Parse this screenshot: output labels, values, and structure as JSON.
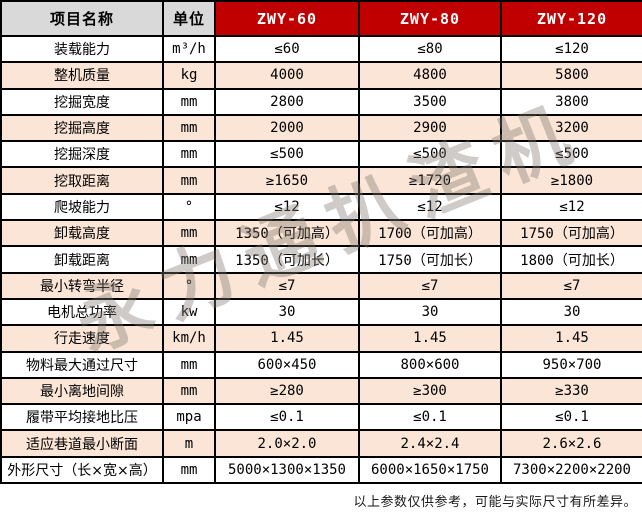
{
  "table": {
    "headers": [
      "项目名称",
      "单位",
      "ZWY-60",
      "ZWY-80",
      "ZWY-120"
    ],
    "rows": [
      {
        "name": "装载能力",
        "unit": "m³/h",
        "values": [
          "≤60",
          "≤80",
          "≤120"
        ]
      },
      {
        "name": "整机质量",
        "unit": "kg",
        "values": [
          "4000",
          "4800",
          "5800"
        ]
      },
      {
        "name": "挖掘宽度",
        "unit": "mm",
        "values": [
          "2800",
          "3500",
          "3800"
        ]
      },
      {
        "name": "挖掘高度",
        "unit": "mm",
        "values": [
          "2000",
          "2900",
          "3200"
        ]
      },
      {
        "name": "挖掘深度",
        "unit": "mm",
        "values": [
          "≤500",
          "≤500",
          "≤500"
        ]
      },
      {
        "name": "挖取距离",
        "unit": "mm",
        "values": [
          "≥1650",
          "≥1720",
          "≥1800"
        ]
      },
      {
        "name": "爬坡能力",
        "unit": "°",
        "values": [
          "≤12",
          "≤12",
          "≤12"
        ]
      },
      {
        "name": "卸载高度",
        "unit": "mm",
        "values": [
          "1350（可加高）",
          "1700（可加高）",
          "1750（可加高）"
        ]
      },
      {
        "name": "卸载距离",
        "unit": "mm",
        "values": [
          "1350（可加长）",
          "1750（可加长）",
          "1800（可加长）"
        ]
      },
      {
        "name": "最小转弯半径",
        "unit": "°",
        "values": [
          "≤7",
          "≤7",
          "≤7"
        ]
      },
      {
        "name": "电机总功率",
        "unit": "kw",
        "values": [
          "30",
          "30",
          "30"
        ]
      },
      {
        "name": "行走速度",
        "unit": "km/h",
        "values": [
          "1.45",
          "1.45",
          "1.45"
        ]
      },
      {
        "name": "物料最大通过尺寸",
        "unit": "mm",
        "values": [
          "600×450",
          "800×600",
          "950×700"
        ]
      },
      {
        "name": "最小离地间隙",
        "unit": "mm",
        "values": [
          "≥280",
          "≥300",
          "≥330"
        ]
      },
      {
        "name": "履带平均接地比压",
        "unit": "mpa",
        "values": [
          "≤0.1",
          "≤0.1",
          "≤0.1"
        ]
      },
      {
        "name": "适应巷道最小断面",
        "unit": "m",
        "values": [
          "2.0×2.0",
          "2.4×2.4",
          "2.6×2.6"
        ]
      },
      {
        "name": "外形尺寸（长×宽×高）",
        "unit": "mm",
        "values": [
          "5000×1300×1350",
          "6000×1650×1750",
          "7300×2200×2200"
        ]
      }
    ]
  },
  "watermark": {
    "text": "永力通扒渣机"
  },
  "footnote": "以上参数仅供参考，可能与实际尺寸有所差异。",
  "colors": {
    "header_red": "#c00000",
    "header_gray": "#d9d9d9",
    "row_alt_peach": "#fbe5d6",
    "border": "#000000",
    "header_text": "#ffffff"
  },
  "chart_data": {
    "type": "table",
    "title": "ZWY 系列参数表",
    "columns": [
      "项目名称",
      "单位",
      "ZWY-60",
      "ZWY-80",
      "ZWY-120"
    ],
    "rows": [
      [
        "装载能力",
        "m³/h",
        "≤60",
        "≤80",
        "≤120"
      ],
      [
        "整机质量",
        "kg",
        "4000",
        "4800",
        "5800"
      ],
      [
        "挖掘宽度",
        "mm",
        "2800",
        "3500",
        "3800"
      ],
      [
        "挖掘高度",
        "mm",
        "2000",
        "2900",
        "3200"
      ],
      [
        "挖掘深度",
        "mm",
        "≤500",
        "≤500",
        "≤500"
      ],
      [
        "挖取距离",
        "mm",
        "≥1650",
        "≥1720",
        "≥1800"
      ],
      [
        "爬坡能力",
        "°",
        "≤12",
        "≤12",
        "≤12"
      ],
      [
        "卸载高度",
        "mm",
        "1350（可加高）",
        "1700（可加高）",
        "1750（可加高）"
      ],
      [
        "卸载距离",
        "mm",
        "1350（可加长）",
        "1750（可加长）",
        "1800（可加长）"
      ],
      [
        "最小转弯半径",
        "°",
        "≤7",
        "≤7",
        "≤7"
      ],
      [
        "电机总功率",
        "kw",
        "30",
        "30",
        "30"
      ],
      [
        "行走速度",
        "km/h",
        "1.45",
        "1.45",
        "1.45"
      ],
      [
        "物料最大通过尺寸",
        "mm",
        "600×450",
        "800×600",
        "950×700"
      ],
      [
        "最小离地间隙",
        "mm",
        "≥280",
        "≥300",
        "≥330"
      ],
      [
        "履带平均接地比压",
        "mpa",
        "≤0.1",
        "≤0.1",
        "≤0.1"
      ],
      [
        "适应巷道最小断面",
        "m",
        "2.0×2.0",
        "2.4×2.4",
        "2.6×2.6"
      ],
      [
        "外形尺寸（长×宽×高）",
        "mm",
        "5000×1300×1350",
        "6000×1650×1750",
        "7300×2200×2200"
      ]
    ]
  }
}
